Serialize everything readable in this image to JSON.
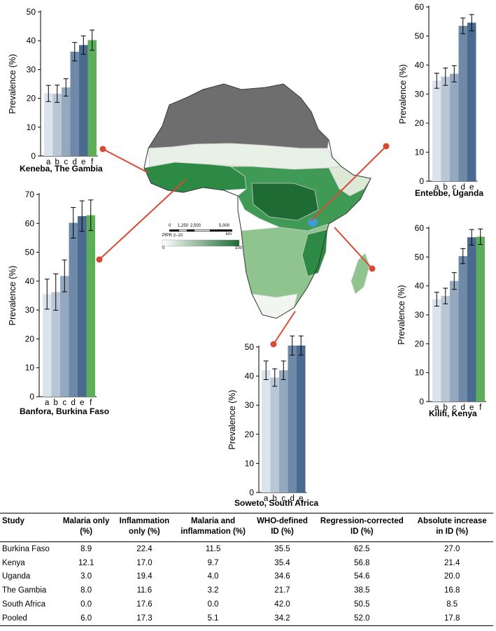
{
  "colors": {
    "bar_shades": [
      "#dbe3ec",
      "#b8c6d6",
      "#94a9c0",
      "#6f89a8",
      "#4a6a8f"
    ],
    "bar_f": "#5cae5a",
    "connector": "#d94a33",
    "map_green_dark": "#1e6b34",
    "map_gray": "#6e6e6e"
  },
  "map": {
    "scale_labels": [
      "0",
      "1,250",
      "2,500",
      "5,000"
    ],
    "scale_unit": "km",
    "legend_title": "PfPR 2–10",
    "legend_min": "0",
    "legend_max": "100"
  },
  "chart_data": [
    {
      "type": "bar",
      "title": "Keneba, The Gambia",
      "ylabel": "Prevalence (%)",
      "categories": [
        "a",
        "b",
        "c",
        "d",
        "e",
        "f"
      ],
      "values": [
        21.7,
        21.6,
        23.8,
        36.2,
        38.5,
        40.2
      ],
      "errors": [
        2.8,
        3.0,
        3.0,
        3.2,
        3.2,
        3.5
      ],
      "ylim": [
        0,
        50
      ],
      "yticks": [
        0,
        10,
        20,
        30,
        40,
        50
      ]
    },
    {
      "type": "bar",
      "title": "Entebbe, Uganda",
      "ylabel": "Prevalence (%)",
      "categories": [
        "a",
        "b",
        "c",
        "d",
        "e"
      ],
      "values": [
        34.6,
        36.0,
        37.0,
        53.5,
        54.6
      ],
      "errors": [
        2.6,
        3.0,
        2.8,
        2.7,
        2.8
      ],
      "ylim": [
        0,
        60
      ],
      "yticks": [
        0,
        10,
        20,
        30,
        40,
        50,
        60
      ]
    },
    {
      "type": "bar",
      "title": "Banfora, Burkina Faso",
      "ylabel": "Prevalence (%)",
      "categories": [
        "a",
        "b",
        "c",
        "d",
        "e",
        "f"
      ],
      "values": [
        35.5,
        36.2,
        41.8,
        60.2,
        62.5,
        62.8
      ],
      "errors": [
        5.2,
        6.3,
        5.5,
        5.3,
        5.3,
        5.3
      ],
      "ylim": [
        0,
        70
      ],
      "yticks": [
        0,
        10,
        20,
        30,
        40,
        50,
        60,
        70
      ]
    },
    {
      "type": "bar",
      "title": "Kilifi, Kenya",
      "ylabel": "Prevalence (%)",
      "categories": [
        "a",
        "b",
        "c",
        "d",
        "e",
        "f"
      ],
      "values": [
        35.4,
        36.5,
        41.7,
        50.3,
        56.8,
        57.0
      ],
      "errors": [
        2.4,
        2.7,
        2.9,
        2.6,
        2.7,
        2.7
      ],
      "ylim": [
        0,
        60
      ],
      "yticks": [
        0,
        10,
        20,
        30,
        40,
        50,
        60
      ]
    },
    {
      "type": "bar",
      "title": "Soweto, South Africa",
      "ylabel": "Prevalence (%)",
      "categories": [
        "a",
        "b",
        "c",
        "d",
        "e"
      ],
      "values": [
        42.0,
        39.5,
        42.0,
        50.5,
        50.5
      ],
      "errors": [
        3.2,
        3.0,
        3.2,
        3.3,
        3.3
      ],
      "ylim": [
        0,
        50
      ],
      "yticks": [
        0,
        10,
        20,
        30,
        40,
        50
      ]
    }
  ],
  "table": {
    "headers": [
      [
        "Study"
      ],
      [
        "Malaria only",
        "(%)"
      ],
      [
        "Inflammation",
        "only (%)"
      ],
      [
        "Malaria and",
        "inflammation (%)"
      ],
      [
        "WHO-defined",
        "ID (%)"
      ],
      [
        "Regression-corrected",
        "ID (%)"
      ],
      [
        "Absolute increase",
        "in ID (%)"
      ]
    ],
    "rows": [
      [
        "Burkina Faso",
        "8.9",
        "22.4",
        "11.5",
        "35.5",
        "62.5",
        "27.0"
      ],
      [
        "Kenya",
        "12.1",
        "17.0",
        "9.7",
        "35.4",
        "56.8",
        "21.4"
      ],
      [
        "Uganda",
        "3.0",
        "19.4",
        "4.0",
        "34.6",
        "54.6",
        "20.0"
      ],
      [
        "The Gambia",
        "8.0",
        "11.6",
        "3.2",
        "21.7",
        "38.5",
        "16.8"
      ],
      [
        "South Africa",
        "0.0",
        "17.6",
        "0.0",
        "42.0",
        "50.5",
        "8.5"
      ],
      [
        "Pooled",
        "6.0",
        "17.3",
        "5.1",
        "34.2",
        "52.0",
        "17.8"
      ]
    ]
  }
}
